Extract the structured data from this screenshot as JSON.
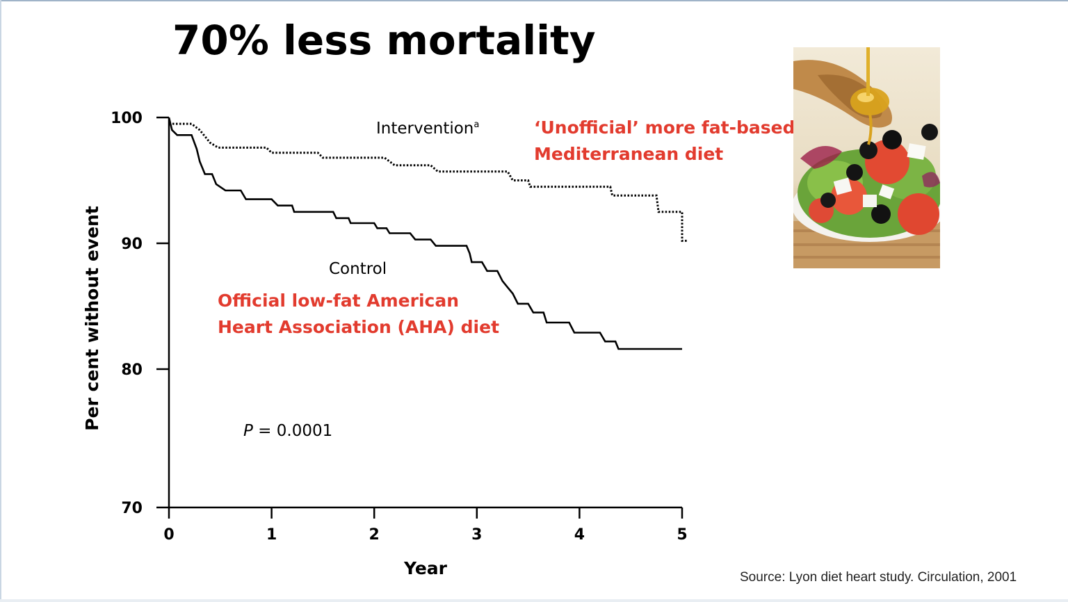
{
  "slide": {
    "title": "70% less mortality",
    "source": "Source: Lyon diet heart study. Circulation, 2001",
    "photo_label": "salad with olive oil"
  },
  "colors": {
    "accent_red": "#e23b2e",
    "ink": "#000000"
  },
  "chart_data": {
    "type": "line",
    "title": "",
    "xlabel": "Year",
    "ylabel": "Per cent without event",
    "xlim": [
      0,
      5
    ],
    "ylim": [
      70,
      100
    ],
    "y_axis_break": true,
    "xticks": [
      "0",
      "1",
      "2",
      "3",
      "4",
      "5"
    ],
    "yticks": [
      "100",
      "90",
      "80",
      "70"
    ],
    "series": [
      {
        "name": "Intervention",
        "label": "Intervention",
        "superscript": "a",
        "style": "dotted",
        "annotation": [
          "‘Unofficial’ more fat-based",
          "Mediterranean diet"
        ],
        "points": [
          [
            0,
            99.5
          ],
          [
            0.22,
            99.5
          ],
          [
            0.3,
            99.0
          ],
          [
            0.35,
            98.5
          ],
          [
            0.4,
            98.0
          ],
          [
            0.48,
            97.6
          ],
          [
            0.95,
            97.6
          ],
          [
            1.0,
            97.2
          ],
          [
            1.45,
            97.2
          ],
          [
            1.5,
            96.8
          ],
          [
            2.1,
            96.8
          ],
          [
            2.2,
            96.2
          ],
          [
            2.55,
            96.2
          ],
          [
            2.62,
            95.7
          ],
          [
            3.3,
            95.7
          ],
          [
            3.35,
            95.0
          ],
          [
            3.5,
            95.0
          ],
          [
            3.52,
            94.5
          ],
          [
            4.3,
            94.5
          ],
          [
            4.32,
            93.8
          ],
          [
            4.75,
            93.8
          ],
          [
            4.77,
            92.5
          ],
          [
            5.0,
            92.5
          ],
          [
            5.0,
            90.2
          ],
          [
            5.05,
            90.2
          ]
        ]
      },
      {
        "name": "Control",
        "label": "Control",
        "style": "solid",
        "annotation": [
          "Official low-fat American",
          "Heart Association (AHA) diet"
        ],
        "points": [
          [
            0,
            100
          ],
          [
            0.03,
            99.0
          ],
          [
            0.08,
            98.6
          ],
          [
            0.22,
            98.6
          ],
          [
            0.27,
            97.5
          ],
          [
            0.3,
            96.5
          ],
          [
            0.35,
            95.5
          ],
          [
            0.42,
            95.5
          ],
          [
            0.46,
            94.7
          ],
          [
            0.55,
            94.2
          ],
          [
            0.7,
            94.2
          ],
          [
            0.75,
            93.5
          ],
          [
            1.0,
            93.5
          ],
          [
            1.06,
            93.0
          ],
          [
            1.2,
            93.0
          ],
          [
            1.22,
            92.5
          ],
          [
            1.6,
            92.5
          ],
          [
            1.63,
            92.0
          ],
          [
            1.75,
            92.0
          ],
          [
            1.77,
            91.6
          ],
          [
            2.0,
            91.6
          ],
          [
            2.03,
            91.2
          ],
          [
            2.12,
            91.2
          ],
          [
            2.15,
            90.8
          ],
          [
            2.35,
            90.8
          ],
          [
            2.4,
            90.3
          ],
          [
            2.55,
            90.3
          ],
          [
            2.6,
            89.8
          ],
          [
            2.9,
            89.8
          ],
          [
            2.93,
            89.2
          ],
          [
            2.95,
            88.5
          ],
          [
            3.05,
            88.5
          ],
          [
            3.1,
            87.8
          ],
          [
            3.2,
            87.8
          ],
          [
            3.25,
            87.0
          ],
          [
            3.3,
            86.5
          ],
          [
            3.35,
            86.0
          ],
          [
            3.4,
            85.2
          ],
          [
            3.5,
            85.2
          ],
          [
            3.55,
            84.5
          ],
          [
            3.65,
            84.5
          ],
          [
            3.68,
            83.7
          ],
          [
            3.9,
            83.7
          ],
          [
            3.95,
            82.9
          ],
          [
            4.2,
            82.9
          ],
          [
            4.25,
            82.2
          ],
          [
            4.35,
            82.2
          ],
          [
            4.38,
            81.6
          ],
          [
            5.0,
            81.6
          ]
        ]
      }
    ],
    "p_value_label": "P",
    "p_value_text": "= 0.0001"
  }
}
